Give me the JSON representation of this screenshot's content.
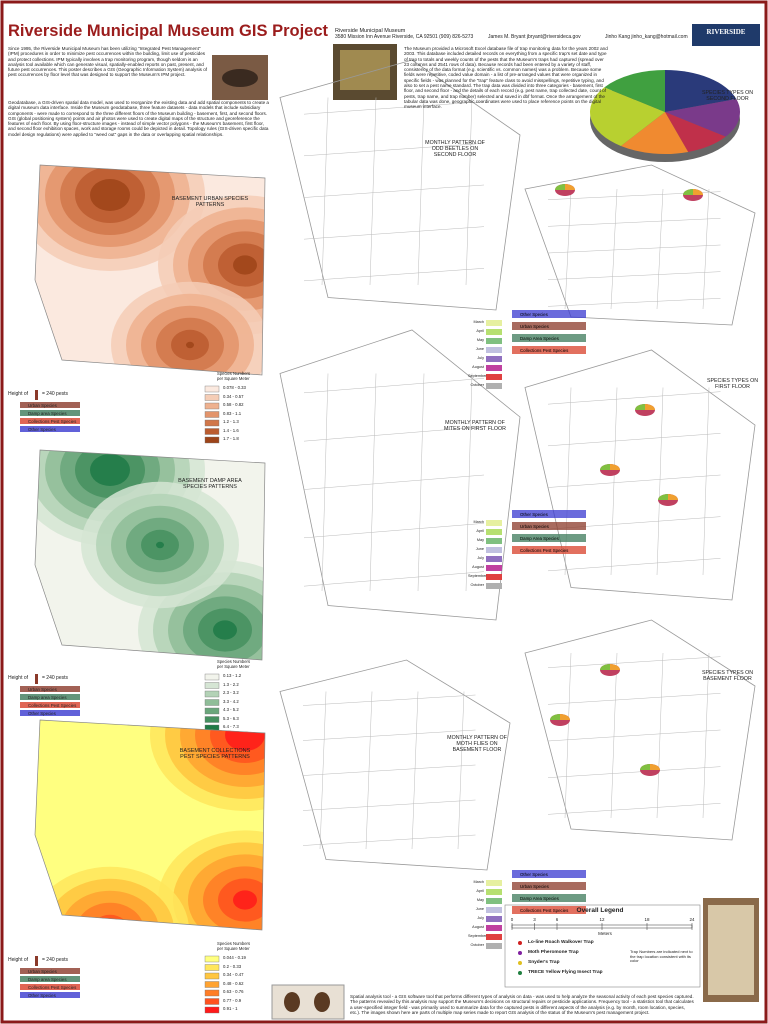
{
  "header": {
    "title": "Riverside Municipal Museum GIS Project",
    "museum": "Riverside Municipal Museum",
    "address": "3580 Mission Inn Avenue Riverside, CA  92501 (909) 826-5273",
    "author1": "James M. Bryant  jbryant@riversideca.gov",
    "author2": "Jinho Kang  jinho_kang@hotmail.com",
    "logo": "RIVERSIDE"
  },
  "intro": [
    "Since 1995, the Riverside Municipal Museum has been utilizing \"Integrated Pest Management\" (IPM) procedures in order to minimize pest occurrences within the building, limit use of pesticides and protect collections. IPM typically involves a trap monitoring program, though seldom is an analysis tool available which can generate visual, spatially-enabled reports on past, present, and future pest occurrences. This poster describes a GIS (Geographic Information System) analysis of pest occurrences by floor level that was designed to support the Museum's IPM project.",
    "Geodatabase, a GIS-driven spatial data model, was used to reorganize the existing data and add spatial components to create a digital museum data interface. Inside the Museum geodatabase, three feature datasets - data models that include subsidiary components - were made to correspond to the three different floors of the Museum building - basement, first, and second floors. GIS (global positioning system) points and air photos were used to create digital maps of the structure and georeference the features of each floor. By using floor-structure images - instead of simple vector polygons - the Museum's basement, first floor, and second floor exhibition spaces, work and storage rooms could be depicted in detail. Topology rules (GIS-driven specific data model design regulations) were applied to \"weed out\" gaps in the data or overlapping spatial relationships."
  ],
  "description": "The Museum provided a Microsoft Excel database file of trap monitoring data for the years 2002 and 2003. This database included detailed records on everything from a specific trap's set date and type of trap to totals and weekly counts of the pests that the Museum's traps had captured (spread over 23 columns and 2541 rows of data). Because records had been entered by a variety of staff, consistency of the data format (e.g. scientific vs. common names) was a problem. Because some fields were repetitive, coded value domain - a list of pre-arranged values that were organized in specific fields - was planned for the \"trap\" feature class to avoid misspellings, repetitive typing, and also to set a pest name standard. The trap data was divided into three categories - basement, first floor, and second floor - and the details of each record (e.g. pest name, trap collected date, count of pests, trap name, and trap number) selected and saved in dbf format. Once the arrangement of the tabular data was done, geographic coordinates were used to place reference points on the digital museum interface.",
  "panels": [
    {
      "title": "BASEMENT URBAN SPECIES PATTERNS",
      "scale_title": "Species Numbers per Square Meter",
      "classes": [
        "0.078 - 0.33",
        "0.34 - 0.57",
        "0.58 - 0.82",
        "0.83 - 1.1",
        "1.2 - 1.3",
        "1.4 - 1.6",
        "1.7 - 1.8"
      ],
      "colors": [
        "#fbe9df",
        "#f5cdb6",
        "#eeb18f",
        "#e3946b",
        "#d1774a",
        "#bb5c2f",
        "#9d4419"
      ]
    },
    {
      "title": "BASEMENT DAMP AREA SPECIES PATTERNS",
      "scale_title": "Species Numbers per Square Meter",
      "classes": [
        "0.13 - 1.2",
        "1.3 - 2.2",
        "2.3 - 3.2",
        "3.3 - 4.2",
        "4.3 - 5.2",
        "5.3 - 6.3",
        "6.4 - 7.3"
      ],
      "colors": [
        "#f2f4ec",
        "#d5e5d4",
        "#b3d2b6",
        "#8fbd98",
        "#6aa67b",
        "#45905f",
        "#1f7a46"
      ]
    },
    {
      "title": "BASEMENT COLLECTIONS PEST SPECIES PATTERNS",
      "scale_title": "Species Numbers per Square Meter",
      "classes": [
        "0.044 - 0.19",
        "0.2 - 0.33",
        "0.34 - 0.47",
        "0.48 - 0.62",
        "0.63 - 0.76",
        "0.77 - 0.9",
        "0.91 - 1"
      ],
      "colors": [
        "#ffff80",
        "#ffe65c",
        "#ffc640",
        "#ffa330",
        "#ff7d26",
        "#ff521f",
        "#ff1a1a"
      ]
    }
  ],
  "height_legend": {
    "label": "Height of",
    "value": "= 240 pests",
    "species": [
      "Urban Species",
      "Damp area Species",
      "Collections Pest Species",
      "Other Species"
    ],
    "colors": [
      "#8b3a2a",
      "#3c7a5a",
      "#d8402a",
      "#3a3ad0"
    ]
  },
  "floors": [
    {
      "pattern_title": "MONTHLY PATTERN OF ODD BEETLES ON SECOND FLOOR",
      "species_title": "SPECIES TYPES ON SECOND FLOOR"
    },
    {
      "pattern_title": "MONTHLY PATTERN OF MITES ON FIRST FLOOR",
      "species_title": "SPECIES TYPES ON FIRST FLOOR"
    },
    {
      "pattern_title": "MONTHLY PATTERN OF MOTH FLIES ON BASEMENT FLOOR",
      "species_title": "SPECIES TYPES ON BASEMENT FLOOR"
    }
  ],
  "months": [
    "March",
    "April",
    "May",
    "June",
    "July",
    "August",
    "September",
    "October"
  ],
  "month_colors": [
    "#e6f0a0",
    "#b6e070",
    "#80c080",
    "#c0c0e0",
    "#9070c0",
    "#c040a0",
    "#e04040",
    "#b0b0b0"
  ],
  "species_legend": [
    "Other Species",
    "Urban Species",
    "Damp Area Species",
    "Collections Pest Species"
  ],
  "species_legend_colors": [
    "#3a3ad0",
    "#8b3a2a",
    "#3c7a5a",
    "#d8402a"
  ],
  "second_floor_pie": {
    "values": [
      20,
      15,
      10,
      15,
      25,
      15
    ],
    "colors": [
      "#2a3a7a",
      "#7a3a8a",
      "#c0304a",
      "#f08a30",
      "#b8d030",
      "#40a040"
    ]
  },
  "overall_legend": {
    "title": "Overall Legend",
    "scale": [
      0,
      3,
      6,
      12,
      18,
      24
    ],
    "unit": "Meters",
    "traps": [
      "Lo-line Roach Walkover Trap",
      "Moth Pheromone Trap",
      "Snyder's Trap",
      "TRECE Yellow Flying Insect Trap"
    ],
    "trap_colors": [
      "#d02020",
      "#8020a0",
      "#e0c020",
      "#208040"
    ],
    "note": "Trap Numbers are indicated next to the trap location consistent with its color"
  },
  "footer": "Spatial analysis tool - a GIS software tool that performs different types of analysis on data - was used to help analyze the seasonal activity of each pest species captured. The patterns revealed by this analysis may support the Museum's decisions on structural repairs or pesticide applications. Frequency tool - a statistics tool that calculates a user-specified integer field - was primarily used to summarize data for the captured pests in different aspects of the analysis (e.g. by month, room location, species, etc.). The images shown here are parts of multiple map series made to report GIS analysis of the status of the Museum's pest management project."
}
